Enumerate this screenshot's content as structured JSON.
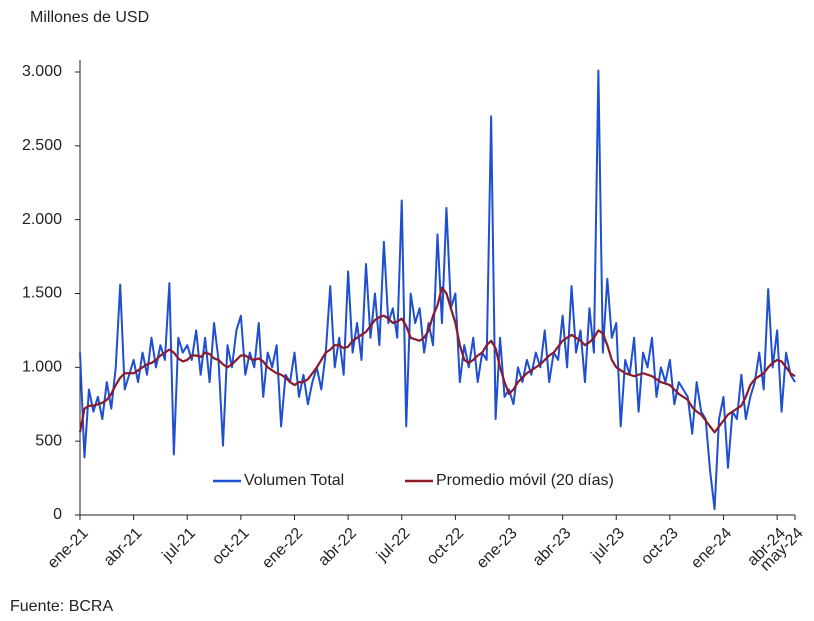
{
  "chart_data": {
    "type": "line",
    "y_label": "Millones de USD",
    "source": "Fuente: BCRA",
    "legend": "bottom",
    "ylim": [
      0,
      3000
    ],
    "yticks": [
      0,
      500,
      {
        "value": 1000,
        "label": "1.000"
      },
      {
        "value": 1500,
        "label": "1.500"
      },
      {
        "value": 2000,
        "label": "2.000"
      },
      {
        "value": 2500,
        "label": "2.500"
      },
      {
        "value": 3000,
        "label": "3.000"
      }
    ],
    "categories": [
      "ene-21",
      null,
      null,
      null,
      null,
      null,
      null,
      null,
      null,
      null,
      null,
      null,
      "abr-21",
      null,
      null,
      null,
      null,
      null,
      null,
      null,
      null,
      null,
      null,
      null,
      "jul-21",
      null,
      null,
      null,
      null,
      null,
      null,
      null,
      null,
      null,
      null,
      null,
      "oct-21",
      null,
      null,
      null,
      null,
      null,
      null,
      null,
      null,
      null,
      null,
      null,
      "ene-22",
      null,
      null,
      null,
      null,
      null,
      null,
      null,
      null,
      null,
      null,
      null,
      "abr-22",
      null,
      null,
      null,
      null,
      null,
      null,
      null,
      null,
      null,
      null,
      null,
      "jul-22",
      null,
      null,
      null,
      null,
      null,
      null,
      null,
      null,
      null,
      null,
      null,
      "oct-22",
      null,
      null,
      null,
      null,
      null,
      null,
      null,
      null,
      null,
      null,
      null,
      "ene-23",
      null,
      null,
      null,
      null,
      null,
      null,
      null,
      null,
      null,
      null,
      null,
      "abr-23",
      null,
      null,
      null,
      null,
      null,
      null,
      null,
      null,
      null,
      null,
      null,
      "jul-23",
      null,
      null,
      null,
      null,
      null,
      null,
      null,
      null,
      null,
      null,
      null,
      "oct-23",
      null,
      null,
      null,
      null,
      null,
      null,
      null,
      null,
      null,
      null,
      null,
      "ene-24",
      null,
      null,
      null,
      null,
      null,
      null,
      null,
      null,
      null,
      null,
      null,
      "abr-24",
      null,
      null,
      null,
      "may-24"
    ],
    "series": [
      {
        "name": "Volumen Total",
        "color": "#1f4fd1",
        "values": [
          1100,
          390,
          850,
          700,
          800,
          650,
          900,
          720,
          1000,
          1560,
          850,
          950,
          1050,
          900,
          1100,
          950,
          1200,
          1000,
          1150,
          1050,
          1570,
          410,
          1200,
          1100,
          1150,
          1050,
          1250,
          950,
          1200,
          900,
          1300,
          1050,
          470,
          1150,
          1000,
          1250,
          1350,
          950,
          1100,
          1000,
          1300,
          800,
          1100,
          1000,
          1150,
          600,
          950,
          900,
          1100,
          800,
          950,
          750,
          900,
          1000,
          850,
          1100,
          1550,
          1000,
          1200,
          950,
          1650,
          1100,
          1300,
          1050,
          1700,
          1200,
          1500,
          1150,
          1850,
          1300,
          1400,
          1200,
          2130,
          600,
          1500,
          1300,
          1400,
          1100,
          1300,
          1150,
          1900,
          1300,
          2080,
          1400,
          1500,
          900,
          1150,
          1000,
          1200,
          900,
          1100,
          1050,
          2700,
          650,
          1200,
          800,
          850,
          750,
          1000,
          900,
          1050,
          950,
          1100,
          1000,
          1250,
          900,
          1100,
          1050,
          1350,
          1000,
          1550,
          1100,
          1250,
          900,
          1400,
          1100,
          3010,
          1100,
          1600,
          1200,
          1300,
          600,
          1050,
          950,
          1200,
          700,
          1100,
          1000,
          1200,
          800,
          1000,
          900,
          1050,
          750,
          900,
          850,
          800,
          550,
          900,
          700,
          650,
          300,
          40,
          650,
          800,
          320,
          700,
          650,
          950,
          650,
          800,
          900,
          1100,
          850,
          1530,
          1000,
          1250,
          700,
          1100,
          950,
          900
        ]
      },
      {
        "name": "Promedio móvil (20 días)",
        "color": "#8b1a2a",
        "values": [
          560,
          720,
          740,
          740,
          750,
          760,
          780,
          820,
          880,
          930,
          960,
          960,
          960,
          980,
          1000,
          1020,
          1030,
          1050,
          1080,
          1100,
          1120,
          1100,
          1060,
          1040,
          1050,
          1080,
          1080,
          1070,
          1100,
          1090,
          1060,
          1050,
          1020,
          1000,
          1020,
          1050,
          1080,
          1080,
          1060,
          1050,
          1060,
          1040,
          1000,
          980,
          960,
          950,
          930,
          900,
          880,
          900,
          900,
          920,
          960,
          1000,
          1050,
          1100,
          1120,
          1150,
          1150,
          1130,
          1140,
          1180,
          1200,
          1220,
          1240,
          1280,
          1320,
          1340,
          1350,
          1330,
          1300,
          1310,
          1330,
          1280,
          1200,
          1190,
          1180,
          1200,
          1250,
          1350,
          1420,
          1540,
          1500,
          1400,
          1300,
          1150,
          1050,
          1030,
          1050,
          1080,
          1100,
          1150,
          1180,
          1130,
          1000,
          900,
          820,
          850,
          900,
          930,
          960,
          980,
          1000,
          1020,
          1050,
          1080,
          1100,
          1140,
          1180,
          1200,
          1220,
          1200,
          1180,
          1150,
          1170,
          1200,
          1250,
          1230,
          1150,
          1050,
          1000,
          980,
          960,
          950,
          940,
          950,
          960,
          950,
          940,
          920,
          900,
          890,
          880,
          850,
          820,
          800,
          780,
          730,
          700,
          680,
          640,
          600,
          560,
          600,
          640,
          680,
          700,
          720,
          740,
          800,
          880,
          920,
          940,
          960,
          1000,
          1030,
          1050,
          1040,
          1000,
          960,
          940
        ]
      }
    ]
  }
}
